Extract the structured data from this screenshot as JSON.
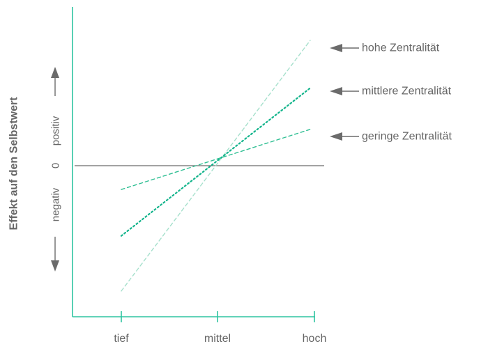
{
  "chart_data": {
    "type": "line",
    "title": "",
    "xlabel": "",
    "ylabel": "Effekt auf den Selbstwert",
    "categories": [
      "tief",
      "mittel",
      "hoch"
    ],
    "y_axis_labels": {
      "negative": "negativ",
      "zero": "0",
      "positive": "positiv"
    },
    "ylim": [
      -1.2,
      1.2
    ],
    "grid": false,
    "legend_position": "right",
    "series": [
      {
        "name": "hohe Zentralität",
        "start": -1.0,
        "end": 1.0,
        "style": "dashed",
        "color": "#a6e0cc"
      },
      {
        "name": "mittlere Zentralität",
        "start": -0.56,
        "end": 0.62,
        "style": "dotted",
        "color": "#12b48b"
      },
      {
        "name": "geringe Zentralität",
        "start": -0.19,
        "end": 0.29,
        "style": "dashed",
        "color": "#2fbf93"
      }
    ]
  },
  "colors": {
    "axis": "#2ec4a0",
    "zero_line": "#6b6b6b",
    "text": "#666666",
    "arrow": "#6b6b6b"
  }
}
